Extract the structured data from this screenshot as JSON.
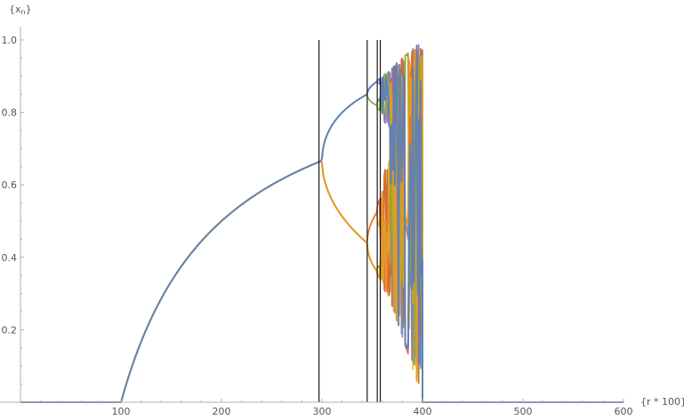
{
  "chart_data": {
    "type": "line",
    "title": "",
    "xlabel": "{r * 100}",
    "ylabel": "{x_n}",
    "ylabel_base": "{x",
    "ylabel_sub": "n",
    "ylabel_close": "}",
    "xlim": [
      0,
      600
    ],
    "ylim": [
      0,
      1.0
    ],
    "x_ticks": [
      100,
      200,
      300,
      400,
      500,
      600
    ],
    "x_tick_labels": [
      "100",
      "200",
      "300",
      "400",
      "500",
      "600"
    ],
    "y_ticks": [
      0.2,
      0.4,
      0.6,
      0.8,
      1.0
    ],
    "y_tick_labels": [
      "0.2",
      "0.4",
      "0.6",
      "0.8",
      "1.0"
    ],
    "grid": false,
    "vertical_markers": [
      297,
      345,
      355,
      358
    ],
    "colors": [
      "#5e81b5",
      "#e19c24",
      "#8fb032",
      "#eb6235",
      "#8778b3",
      "#c56e1a",
      "#5d9ec7",
      "#ffbf00"
    ],
    "series": [
      {
        "color": "#5e81b5",
        "stable_branch": "upper"
      },
      {
        "color": "#e19c24",
        "stable_branch": "lower"
      }
    ]
  }
}
